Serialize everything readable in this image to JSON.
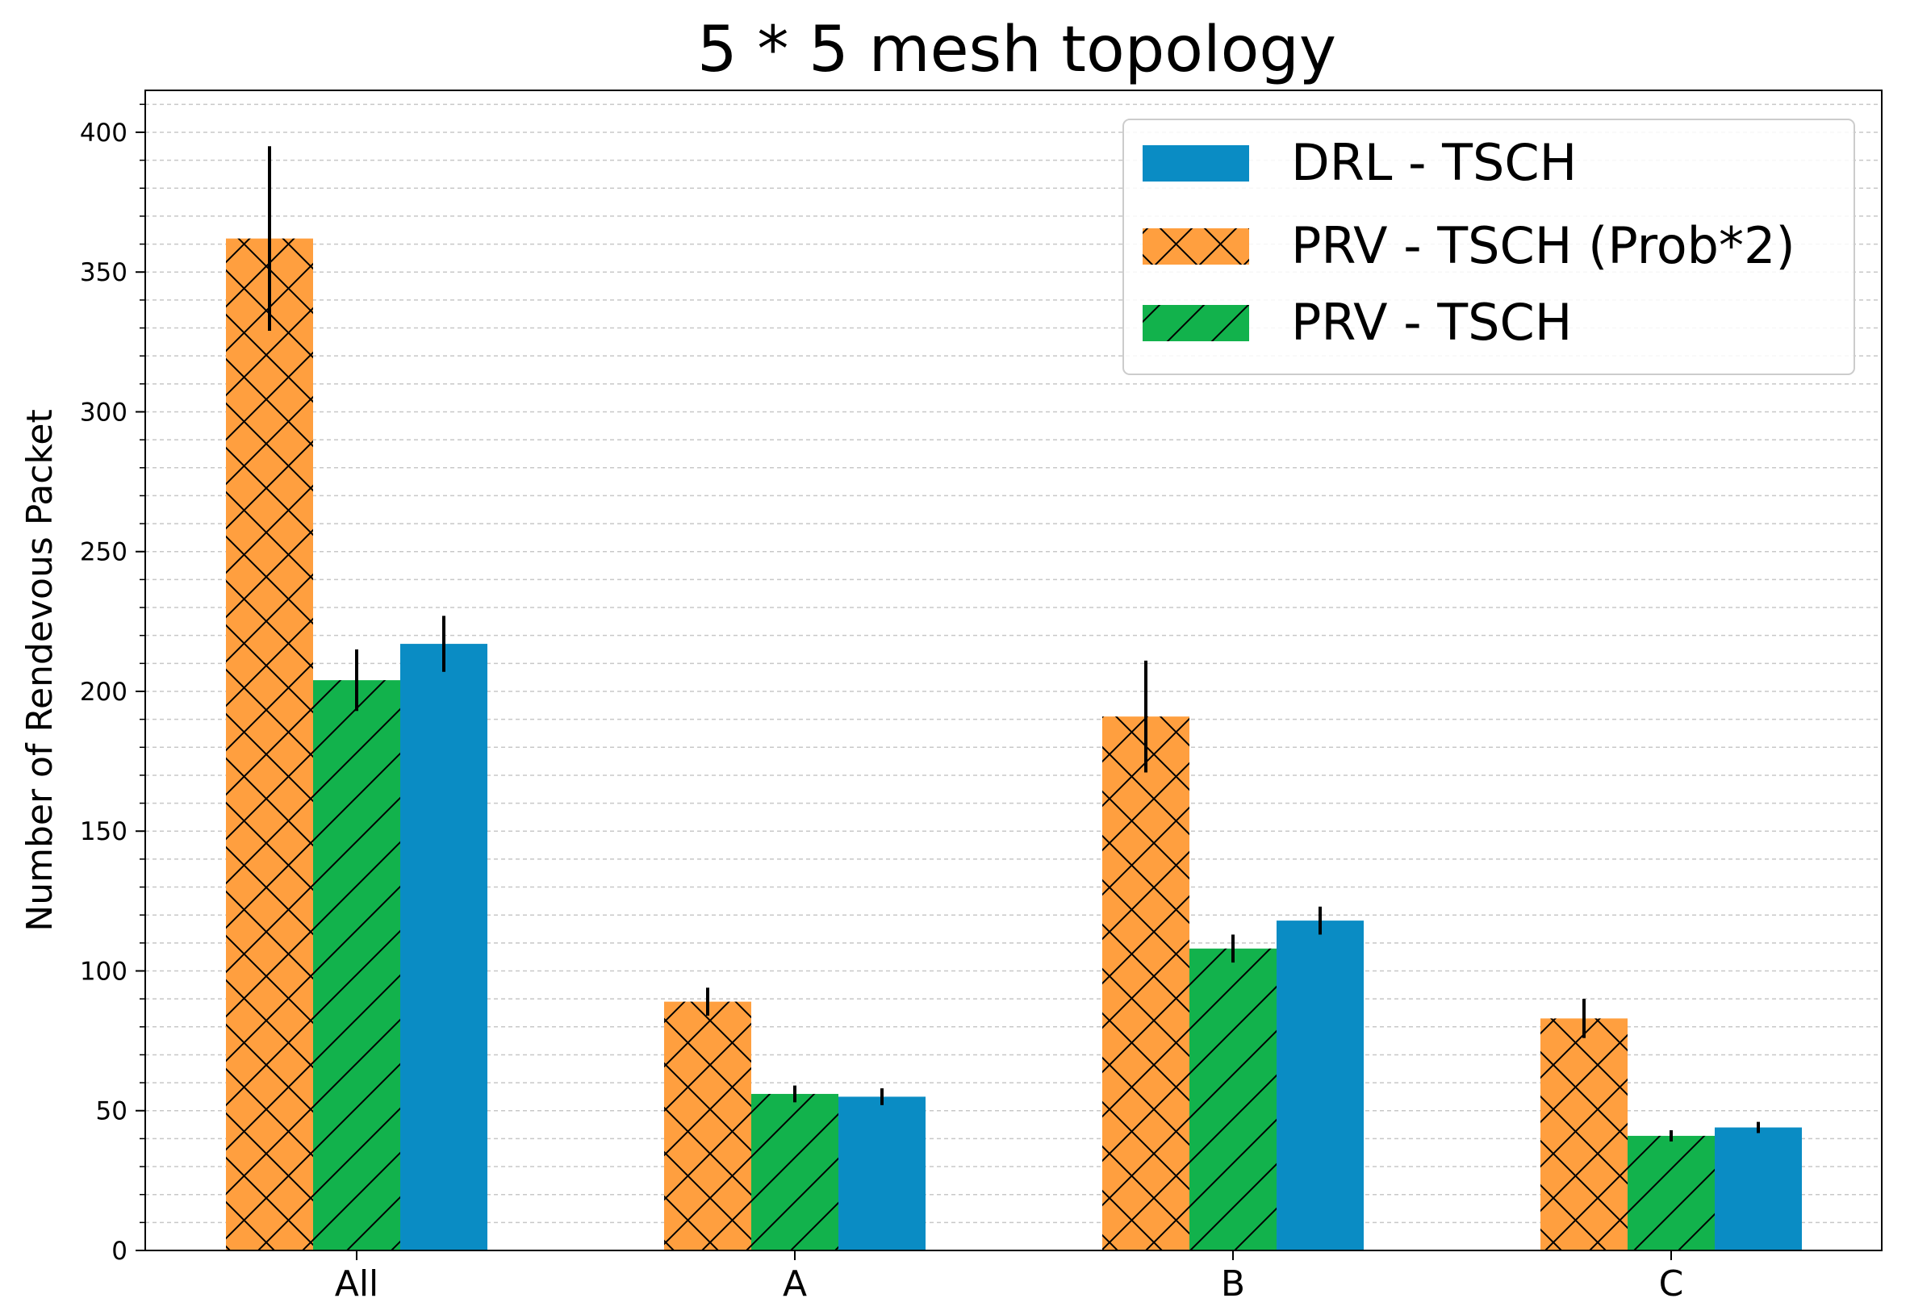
{
  "chart_data": {
    "type": "bar",
    "title": "5 * 5 mesh topology",
    "xlabel": "",
    "ylabel": "Number of Rendevous Packet",
    "categories": [
      "All",
      "A",
      "B",
      "C"
    ],
    "ylim": [
      0,
      415
    ],
    "yticks": [
      0,
      50,
      100,
      150,
      200,
      250,
      300,
      350,
      400
    ],
    "grid": "horizontal minor dashed",
    "legend_position": "top-right",
    "series": [
      {
        "name": "PRV - TSCH (Prob*2)",
        "color": "#ff9f3f",
        "hatch": "cross",
        "values": [
          362,
          89,
          191,
          83
        ],
        "errors": [
          33,
          5,
          20,
          7
        ]
      },
      {
        "name": "PRV - TSCH",
        "color": "#12b24c",
        "hatch": "diagonal",
        "values": [
          204,
          56,
          108,
          41
        ],
        "errors": [
          11,
          3,
          5,
          2
        ]
      },
      {
        "name": "DRL - TSCH",
        "color": "#0a8cc4",
        "hatch": "none",
        "values": [
          217,
          55,
          118,
          44
        ],
        "errors": [
          10,
          3,
          5,
          2
        ]
      }
    ],
    "legend_order": [
      "DRL - TSCH",
      "PRV - TSCH (Prob*2)",
      "PRV - TSCH"
    ]
  }
}
